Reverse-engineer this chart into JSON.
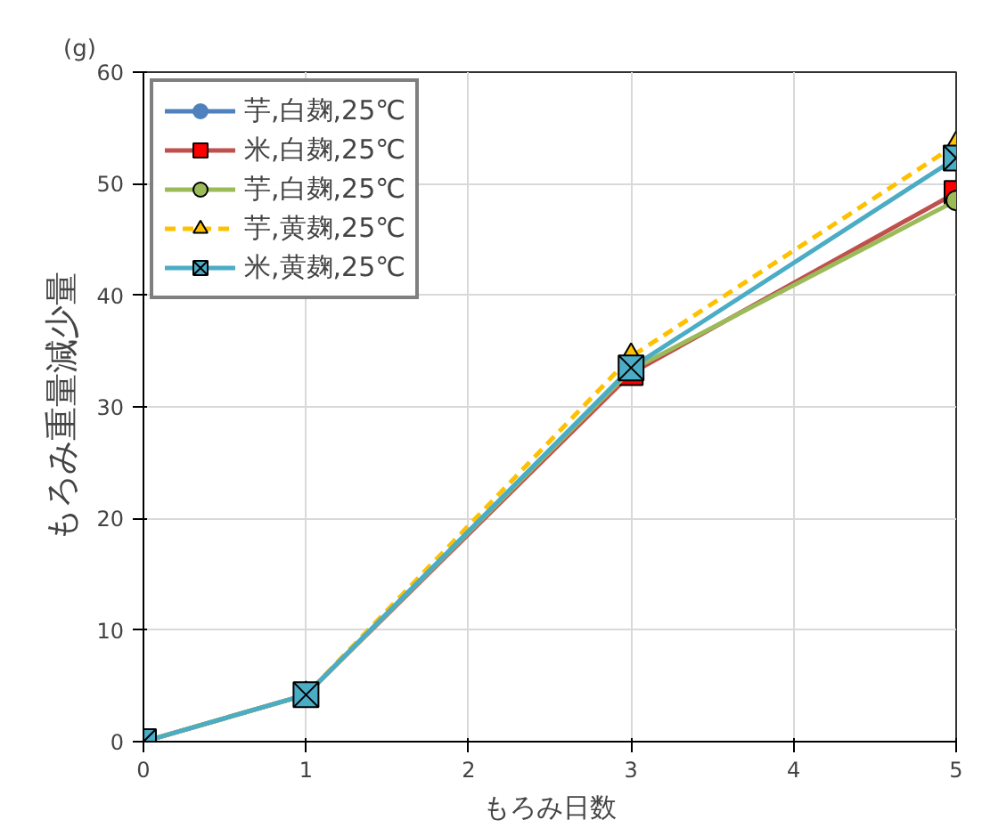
{
  "chart_data": {
    "type": "line",
    "xlabel": "もろみ日数",
    "ylabel": "もろみ重量減少量",
    "annotations": [
      "(g)"
    ],
    "x": [
      0,
      1,
      3,
      5
    ],
    "xlim": [
      0,
      5
    ],
    "xticks": [
      0,
      1,
      2,
      3,
      4,
      5
    ],
    "ylim": [
      0,
      60
    ],
    "yticks": [
      0,
      10,
      20,
      30,
      40,
      50,
      60
    ],
    "grid": true,
    "legend": "top left",
    "series": [
      {
        "name": "芋,白麹,25℃",
        "color": "#4f81bd",
        "marker": "circle",
        "line_style": "solid",
        "values": [
          null,
          null,
          null,
          null
        ]
      },
      {
        "name": "米,白麹,25℃",
        "color": "#c0504d",
        "marker": "square",
        "line_style": "solid",
        "values": [
          0,
          4.2,
          33,
          49.2
        ]
      },
      {
        "name": "芋,白麹,25℃",
        "color": "#9bbb59",
        "marker": "circle",
        "line_style": "solid",
        "values": [
          0,
          4.2,
          33.3,
          48.5
        ]
      },
      {
        "name": "芋,黄麹,25℃",
        "color": "#ffc000",
        "marker": "triangle",
        "line_style": "dashed",
        "values": [
          0,
          4.2,
          34.5,
          53.5
        ]
      },
      {
        "name": "米,黄麹,25℃",
        "color": "#4bacc6",
        "marker": "cross",
        "line_style": "solid",
        "values": [
          0,
          4.2,
          33.5,
          52.3
        ]
      }
    ]
  }
}
